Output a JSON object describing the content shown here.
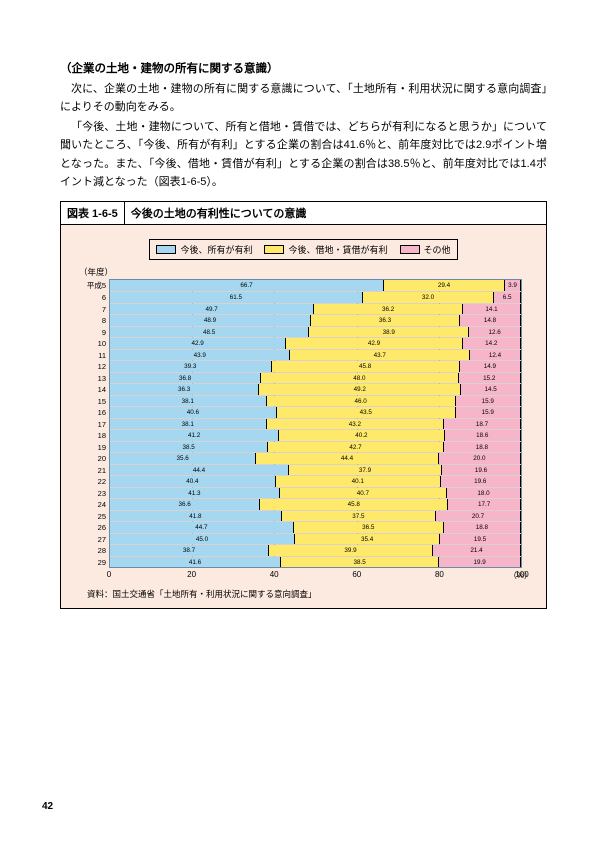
{
  "heading": "（企業の土地・建物の所有に関する意識）",
  "para1": "次に、企業の土地・建物の所有に関する意識について、「土地所有・利用状況に関する意向調査」によりその動向をみる。",
  "para2": "「今後、土地・建物について、所有と借地・賃借では、どちらが有利になると思うか」について聞いたところ、「今後、所有が有利」とする企業の割合は41.6％と、前年度対比では2.9ポイント増となった。また、「今後、借地・賃借が有利」とする企業の割合は38.5％と、前年度対比では1.4ポイント減となった（図表1-6-5）。",
  "figure_num": "図表 1-6-5",
  "figure_title": "今後の土地の有利性についての意識",
  "legend": {
    "a": "今後、所有が有利",
    "b": "今後、借地・賃借が有利",
    "c": "その他"
  },
  "axis_top": "（年度）",
  "colors": {
    "a": "#a5d8f0",
    "b": "#ffe96b",
    "c": "#f7b5c9",
    "bg": "#fce9df",
    "border": "#6a8aa5"
  },
  "rows": [
    {
      "y": "平成5",
      "a": 66.7,
      "b": 29.4,
      "c": 3.9
    },
    {
      "y": "6",
      "a": 61.5,
      "b": 32.0,
      "c": 6.5
    },
    {
      "y": "7",
      "a": 49.7,
      "b": 36.2,
      "c": 14.1
    },
    {
      "y": "8",
      "a": 48.9,
      "b": 36.3,
      "c": 14.8
    },
    {
      "y": "9",
      "a": 48.5,
      "b": 38.9,
      "c": 12.6
    },
    {
      "y": "10",
      "a": 42.9,
      "b": 42.9,
      "c": 14.2
    },
    {
      "y": "11",
      "a": 43.9,
      "b": 43.7,
      "c": 12.4
    },
    {
      "y": "12",
      "a": 39.3,
      "b": 45.8,
      "c": 14.9
    },
    {
      "y": "13",
      "a": 36.8,
      "b": 48.0,
      "c": 15.2
    },
    {
      "y": "14",
      "a": 36.3,
      "b": 49.2,
      "c": 14.5
    },
    {
      "y": "15",
      "a": 38.1,
      "b": 46.0,
      "c": 15.9
    },
    {
      "y": "16",
      "a": 40.6,
      "b": 43.5,
      "c": 15.9
    },
    {
      "y": "17",
      "a": 38.1,
      "b": 43.2,
      "c": 18.7
    },
    {
      "y": "18",
      "a": 41.2,
      "b": 40.2,
      "c": 18.6
    },
    {
      "y": "19",
      "a": 38.5,
      "b": 42.7,
      "c": 18.8
    },
    {
      "y": "20",
      "a": 35.6,
      "b": 44.4,
      "c": 20.0
    },
    {
      "y": "21",
      "a": 44.4,
      "b": 37.9,
      "c": 19.6
    },
    {
      "y": "22",
      "a": 40.4,
      "b": 40.1,
      "c": 19.6
    },
    {
      "y": "23",
      "a": 41.3,
      "b": 40.7,
      "c": 18.0
    },
    {
      "y": "24",
      "a": 36.6,
      "b": 45.8,
      "c": 17.7
    },
    {
      "y": "25",
      "a": 41.8,
      "b": 37.5,
      "c": 20.7
    },
    {
      "y": "26",
      "a": 44.7,
      "b": 36.5,
      "c": 18.8
    },
    {
      "y": "27",
      "a": 45.0,
      "b": 35.4,
      "c": 19.5
    },
    {
      "y": "28",
      "a": 38.7,
      "b": 39.9,
      "c": 21.4
    },
    {
      "y": "29",
      "a": 41.6,
      "b": 38.5,
      "c": 19.9
    }
  ],
  "xticks": [
    0,
    20,
    40,
    60,
    80,
    100
  ],
  "xunit": "（%）",
  "source": "資料：国土交通省「土地所有・利用状況に関する意向調査」",
  "page": "42"
}
